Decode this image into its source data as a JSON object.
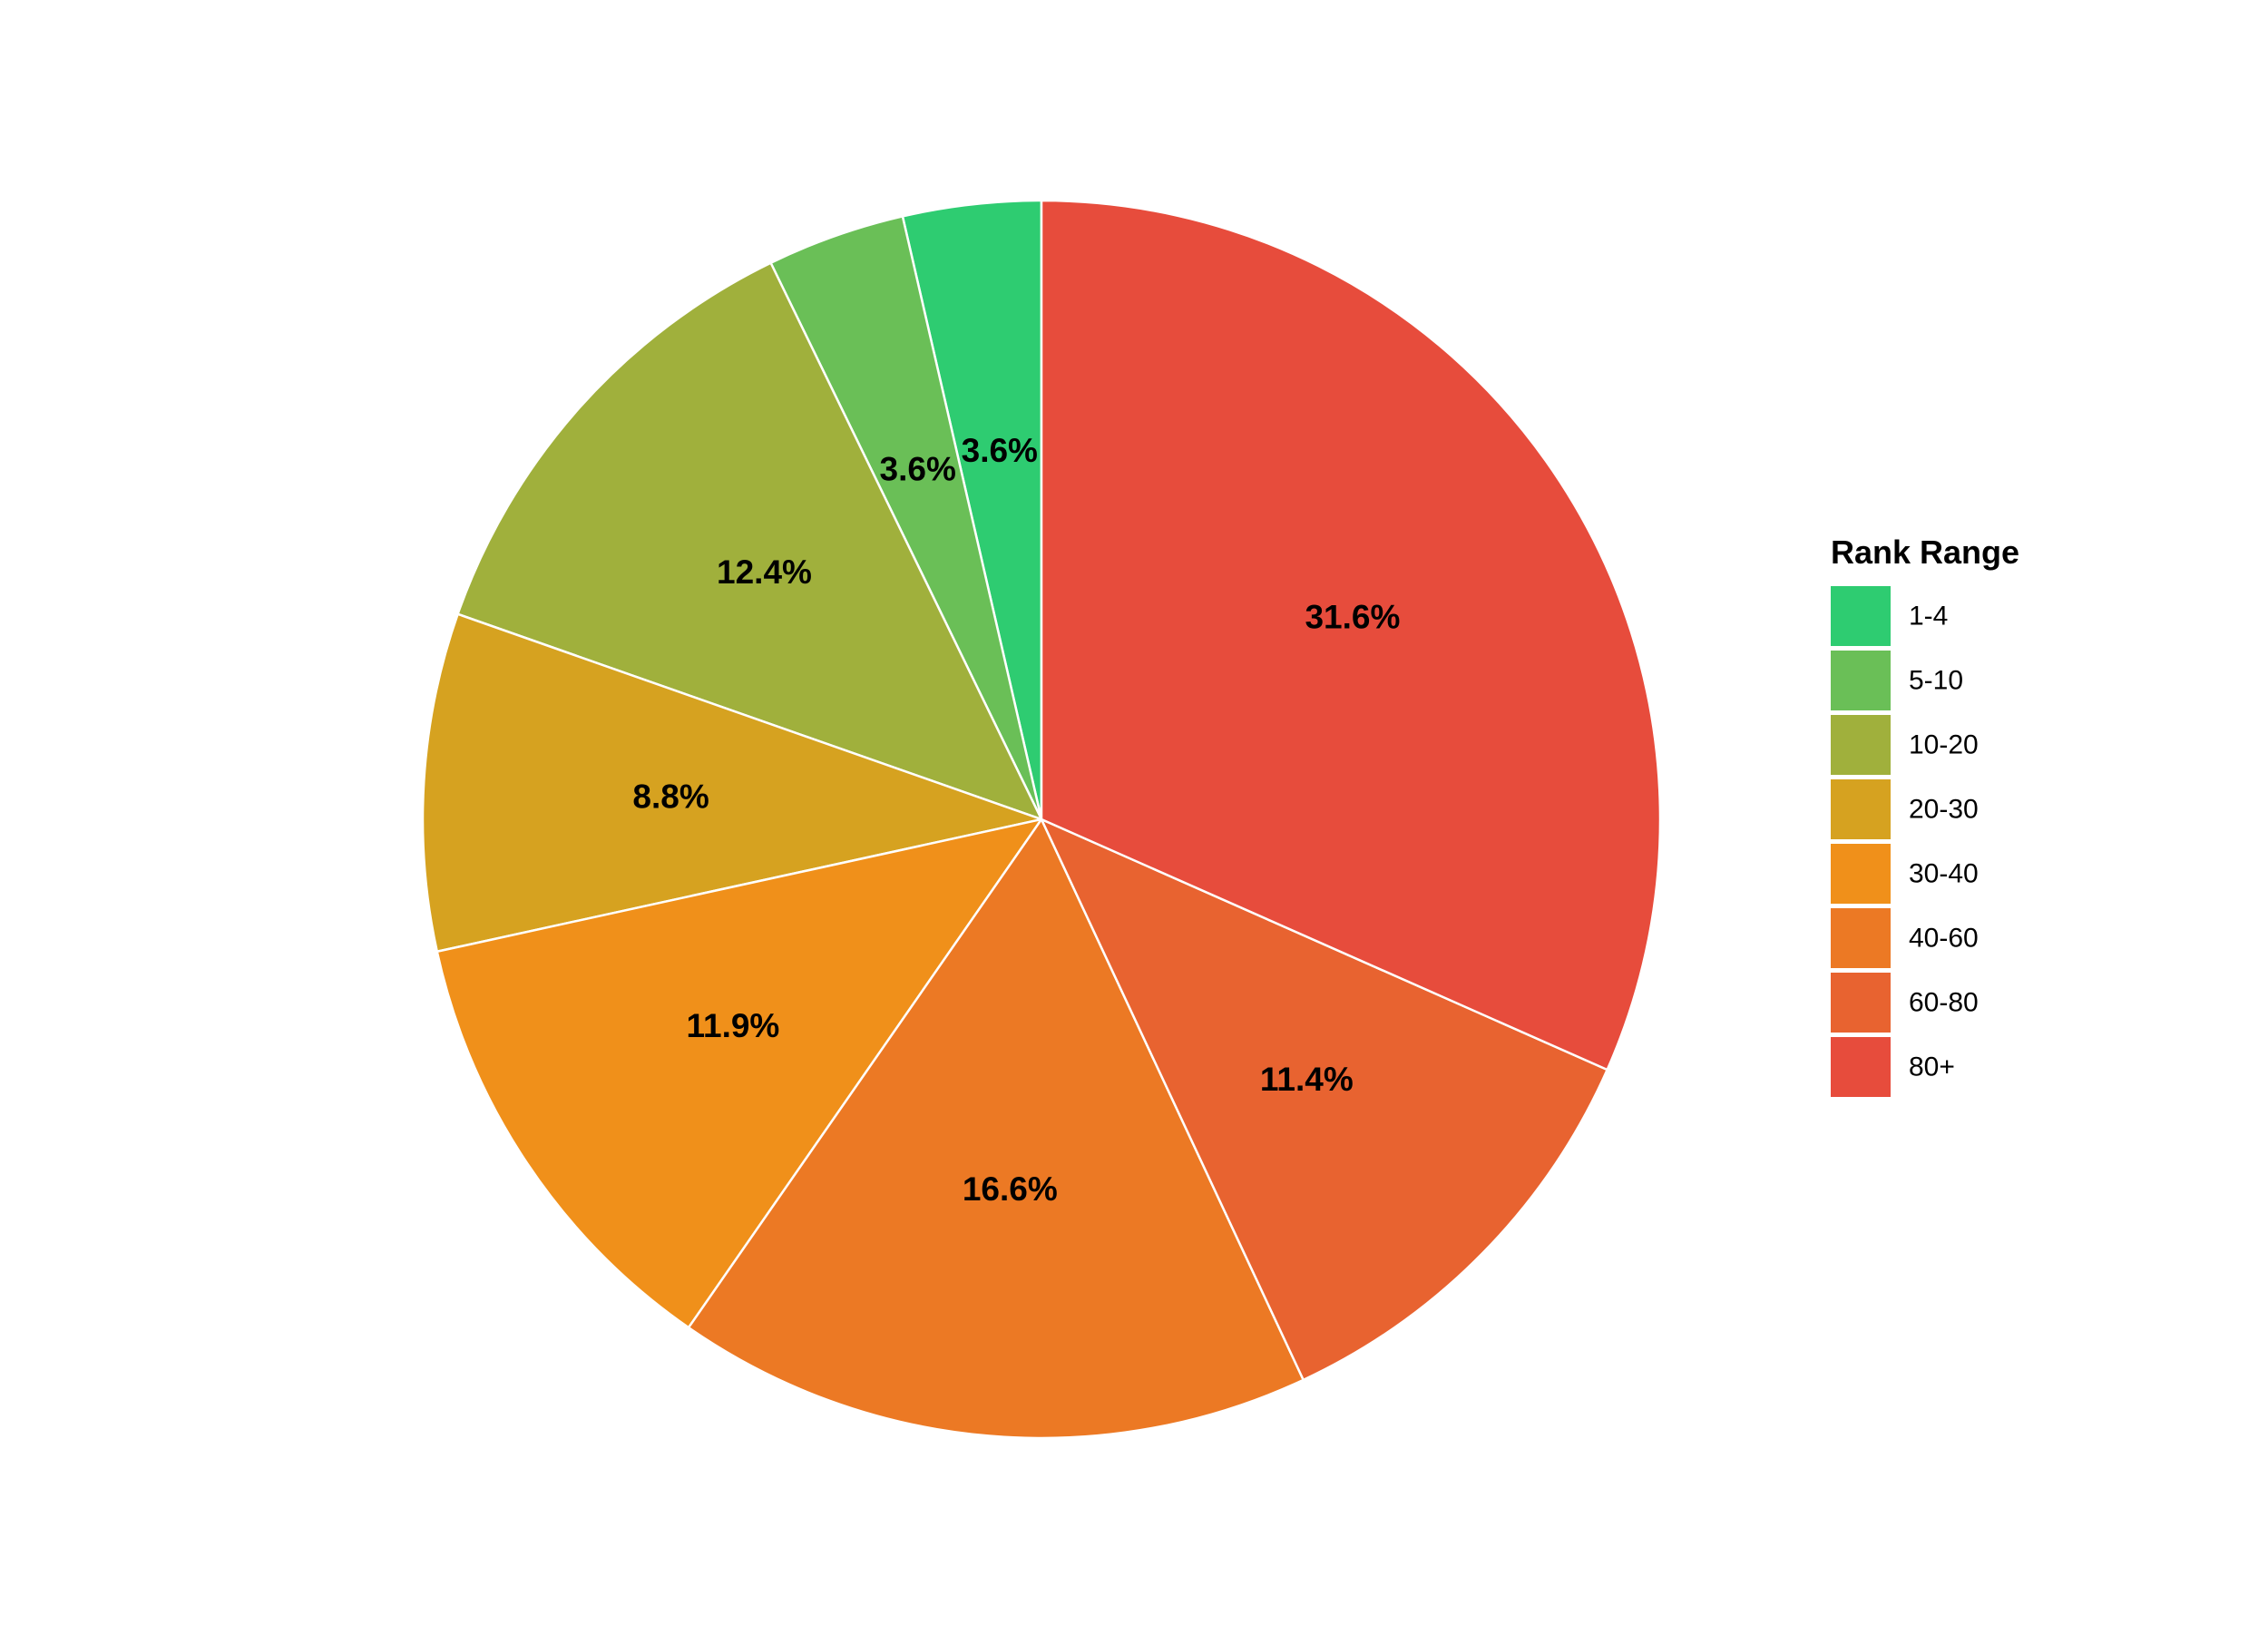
{
  "chart_data": {
    "type": "pie",
    "legend_title": "Rank Range",
    "legend_position": "right",
    "start": "12 o'clock",
    "direction": "counterclockwise",
    "categories": [
      "1-4",
      "5-10",
      "10-20",
      "20-30",
      "30-40",
      "40-60",
      "60-80",
      "80+"
    ],
    "values": [
      3.6,
      3.6,
      12.4,
      8.8,
      11.9,
      16.6,
      11.4,
      31.6
    ],
    "labels": [
      "3.6%",
      "3.6%",
      "12.4%",
      "8.8%",
      "11.9%",
      "16.6%",
      "11.4%",
      "31.6%"
    ],
    "colors": [
      "#2ECC71",
      "#6ABF57",
      "#A0B03C",
      "#D6A220",
      "#F0901A",
      "#EC7924",
      "#E86330",
      "#E74C3C"
    ],
    "slice_border_color": "#FFFFFF"
  }
}
